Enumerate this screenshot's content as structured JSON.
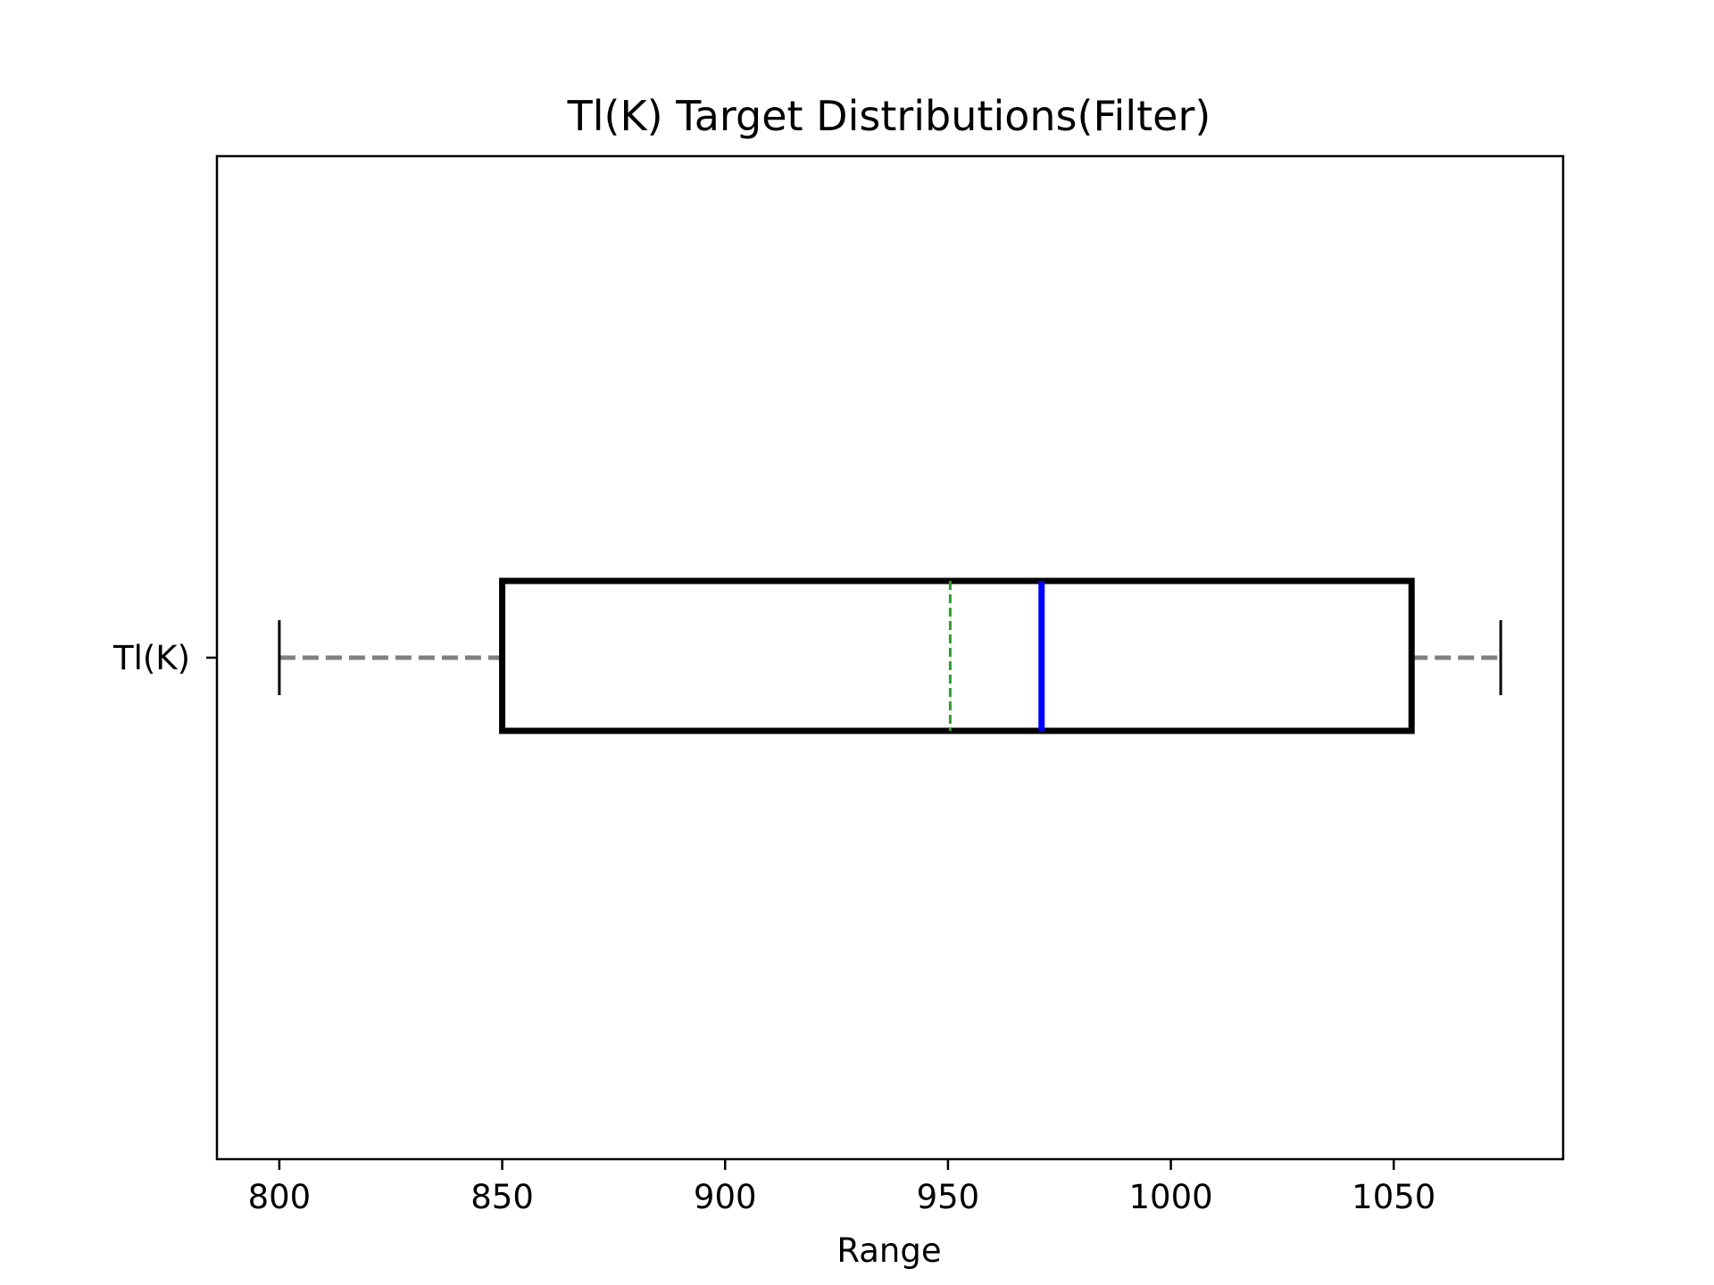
{
  "chart_data": {
    "type": "boxplot",
    "orientation": "horizontal",
    "title": "Tl(K) Target Distributions(Filter)",
    "xlabel": "Range",
    "ylabel": "",
    "xlim": [
      786,
      1088
    ],
    "xticks": [
      800,
      850,
      900,
      950,
      1000,
      1050
    ],
    "xtick_labels": [
      "800",
      "850",
      "900",
      "950",
      "1000",
      "1050"
    ],
    "grid": false,
    "categories": [
      "Tl(K)"
    ],
    "boxes": [
      {
        "label": "Tl(K)",
        "whisker_low": 800,
        "q1": 850,
        "median": 971,
        "mean": 950.5,
        "q3": 1054,
        "whisker_high": 1074
      }
    ],
    "colors": {
      "box": "#000000",
      "median": "#0000ff",
      "mean": "#2ca02c",
      "whisker": "#808080",
      "cap": "#000000"
    }
  }
}
